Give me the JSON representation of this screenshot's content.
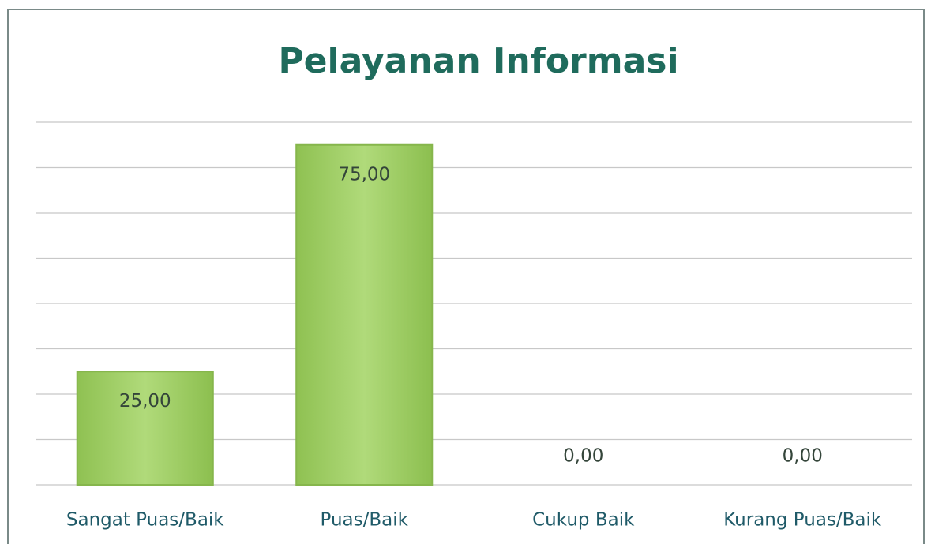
{
  "chart_data": {
    "type": "bar",
    "title": "Pelayanan Informasi",
    "categories": [
      "Sangat Puas/Baik",
      "Puas/Baik",
      "Cukup Baik",
      "Kurang Puas/Baik"
    ],
    "values": [
      25,
      75,
      0,
      0
    ],
    "value_labels": [
      "25,00",
      "75,00",
      "0,00",
      "0,00"
    ],
    "color": "#9ccc5f",
    "ylim": [
      0,
      80
    ],
    "yticks": [
      0,
      10,
      20,
      30,
      40,
      50,
      60,
      70,
      80
    ],
    "grid": true
  }
}
